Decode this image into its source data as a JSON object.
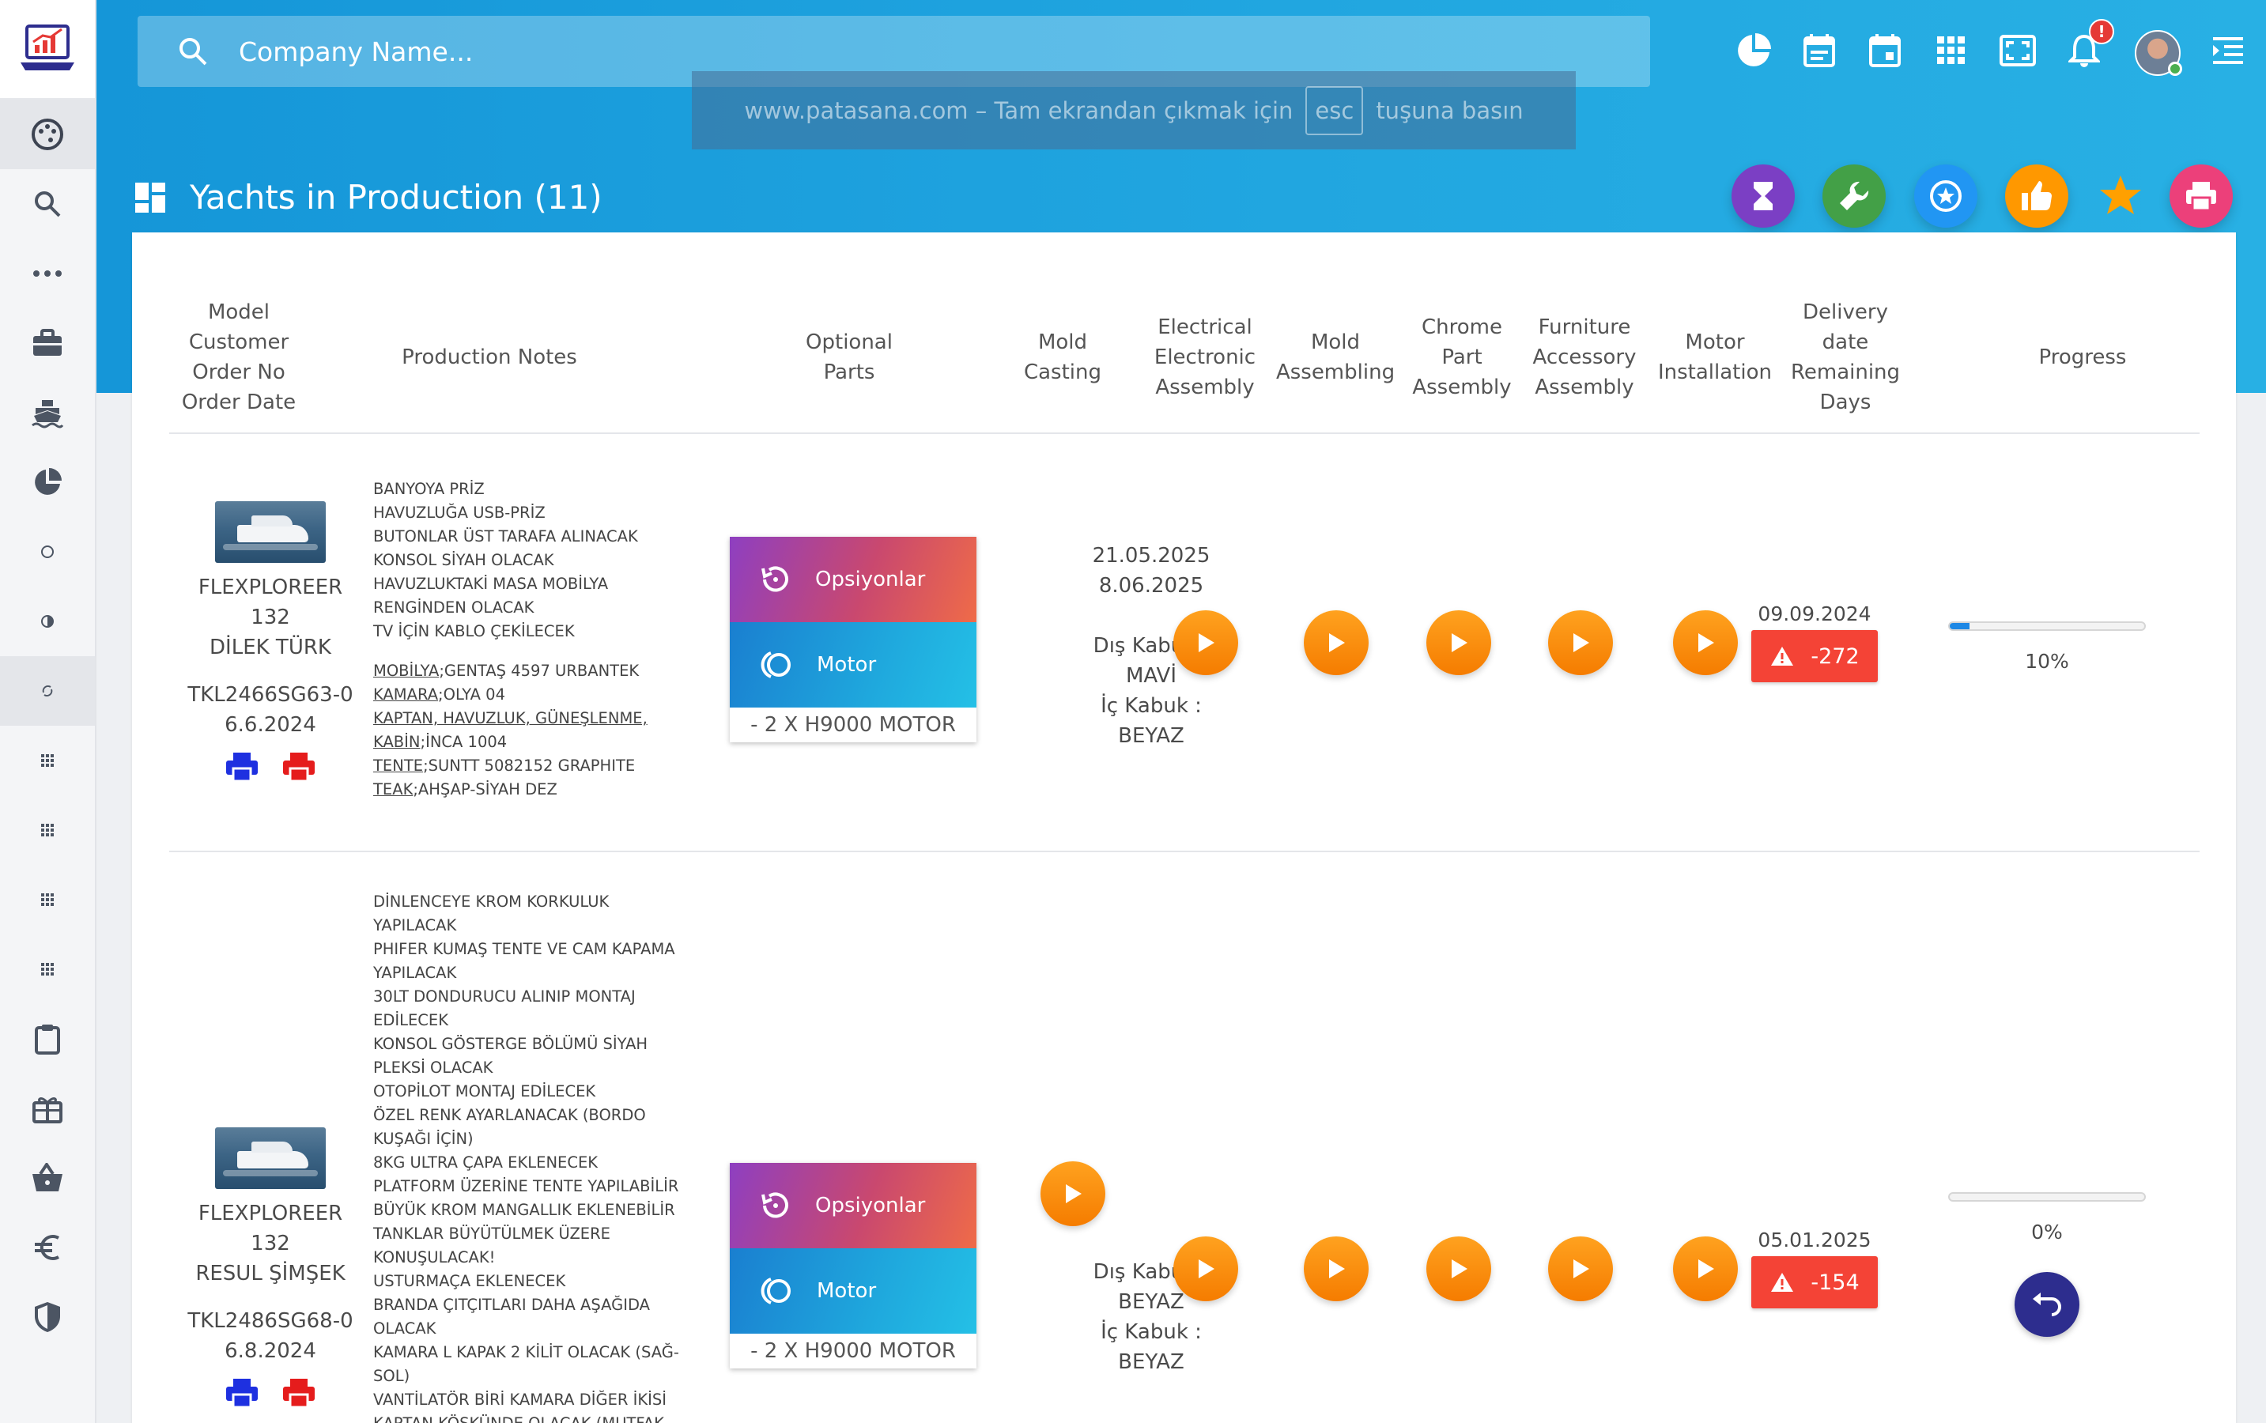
{
  "header": {
    "search_placeholder": "Company Name...",
    "toast": {
      "text_before": "www.patasana.com – Tam ekrandan çıkmak için",
      "key": "esc",
      "text_after": "tuşuna basın"
    },
    "notification_badge": "!"
  },
  "page": {
    "title": "Yachts in Production (11)"
  },
  "fab_colors": {
    "hourglass": "#7b3fc4",
    "wrench": "#43a047",
    "star_badge": "#2196f3",
    "thumb": "#ff9800",
    "star": "#ffa000",
    "print": "#ec407a"
  },
  "table": {
    "headers": {
      "model": "Model\nCustomer\nOrder No\nOrder Date",
      "notes": "Production Notes",
      "optional": "Optional\nParts",
      "mold_casting": "Mold\nCasting",
      "electrical": "Electrical\nElectronic\nAssembly",
      "mold_assembling": "Mold\nAssembling",
      "chrome": "Chrome\nPart\nAssembly",
      "furniture": "Furniture\nAccessory\nAssembly",
      "motor": "Motor\nInstallation",
      "delivery": "Delivery\ndate\nRemaining\nDays",
      "progress": "Progress"
    },
    "rows": [
      {
        "model": "FLEXPLOREER 132",
        "customer": "DİLEK TÜRK",
        "order_no": "TKL2466SG63-0",
        "order_date": "6.6.2024",
        "notes": [
          "BANYOYA PRİZ",
          "HAVUZLUĞA USB-PRİZ",
          "BUTONLAR ÜST TARAFA ALINACAK",
          "KONSOL SİYAH OLACAK",
          "HAVUZLUKTAKİ MASA MOBİLYA",
          "RENGİNDEN OLACAK",
          "TV İÇİN KABLO ÇEKİLECEK"
        ],
        "materials": [
          {
            "key": "MOBİLYA",
            "value": ";GENTAŞ 4597 URBANTEK"
          },
          {
            "key": "KAMARA",
            "value": ";OLYA 04"
          },
          {
            "key": "KAPTAN, HAVUZLUK, GÜNEŞLENME,",
            "value": ""
          },
          {
            "key": "KABİN",
            "value": ";İNCA 1004"
          },
          {
            "key": "TENTE",
            "value": ";SUNTT 5082152 GRAPHITE"
          },
          {
            "key": "TEAK",
            "value": ";AHŞAP-SİYAH DEZ"
          }
        ],
        "optional": {
          "btn1": "Opsiyonlar",
          "btn2": "Motor",
          "footer": "- 2 X H9000 MOTOR"
        },
        "mold": {
          "date1": "21.05.2025",
          "date2": "8.06.2025",
          "dis_label": "Dış Kabuk :",
          "dis_value": "MAVİ",
          "ic_label": "İç Kabuk :",
          "ic_value": "BEYAZ"
        },
        "delivery_date": "09.09.2024",
        "remaining_days": "-272",
        "progress": 0.1,
        "progress_label": "10%"
      },
      {
        "model": "FLEXPLOREER 132",
        "customer": "RESUL ŞİMŞEK",
        "order_no": "TKL2486SG68-0",
        "order_date": "6.8.2024",
        "notes": [
          "DİNLENCEYE KROM KORKULUK",
          "YAPILACAK",
          "PHIFER KUMAŞ TENTE VE CAM KAPAMA",
          "YAPILACAK",
          "30LT DONDURUCU ALINIP MONTAJ",
          "EDİLECEK",
          "KONSOL GÖSTERGE BÖLÜMÜ SİYAH",
          "PLEKSİ OLACAK",
          "OTOPİLOT MONTAJ EDİLECEK",
          "ÖZEL RENK AYARLANACAK (BORDO",
          "KUŞAĞI İÇİN)",
          "8KG ULTRA ÇAPA EKLENECEK",
          "PLATFORM ÜZERİNE TENTE YAPILABİLİR",
          "BÜYÜK KROM MANGALLIK EKLENEBİLİR",
          "TANKLAR BÜYÜTÜLMEK ÜZERE",
          "KONUŞULACAK!",
          "USTURMAÇA EKLENECEK",
          "BRANDA ÇITÇITLARI DAHA AŞAĞIDA",
          "OLACAK",
          "KAMARA L KAPAK 2 KİLİT OLACAK (SAĞ-",
          "SOL)",
          "VANTİLATÖR BİRİ KAMARA DİĞER İKİSİ",
          "KAPTAN KÖŞKÜNDE OLACAK (MUTFAK"
        ],
        "optional": {
          "btn1": "Opsiyonlar",
          "btn2": "Motor",
          "footer": "- 2 X H9000 MOTOR"
        },
        "mold": {
          "dis_label": "Dış Kabuk :",
          "dis_value": "BEYAZ",
          "ic_label": "İç Kabuk :",
          "ic_value": "BEYAZ"
        },
        "delivery_date": "05.01.2025",
        "remaining_days": "-154",
        "progress": 0,
        "progress_label": "0%"
      }
    ]
  }
}
